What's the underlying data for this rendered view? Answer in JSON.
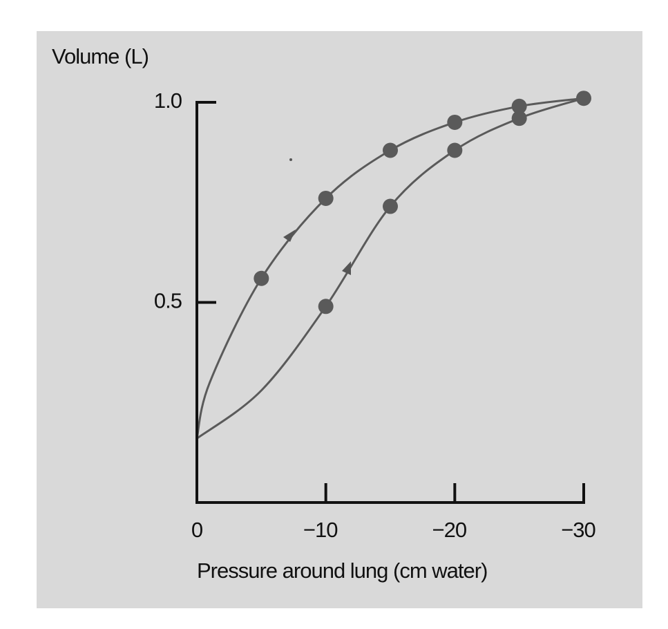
{
  "chart_data": {
    "type": "line",
    "y_label": "Volume (L)",
    "x_label": "Pressure around lung (cm water)",
    "xlim": [
      0,
      -30
    ],
    "ylim": [
      0,
      1
    ],
    "xticks": [
      0,
      {
        "value": -10,
        "label": "−10"
      },
      {
        "value": -20,
        "label": "−20"
      },
      {
        "value": -30,
        "label": "−30"
      }
    ],
    "yticks": [
      {
        "value": 0.5,
        "label": "0.5"
      },
      {
        "value": 1,
        "label": "1.0"
      }
    ],
    "color": "#5a5a5a",
    "series": [
      {
        "style": "line",
        "x": [
          0,
          -1,
          -5,
          -10,
          -15,
          -20,
          -25,
          -30
        ],
        "values": [
          0.16,
          0.3,
          0.56,
          0.76,
          0.88,
          0.95,
          0.99,
          1.01
        ]
      },
      {
        "style": "line",
        "x": [
          0,
          -5,
          -10,
          -15,
          -20,
          -25,
          -30
        ],
        "values": [
          0.16,
          0.28,
          0.49,
          0.74,
          0.88,
          0.96,
          1.01
        ]
      },
      {
        "style": "marker",
        "x": [
          -5,
          -10,
          -15,
          -20,
          -25,
          -30
        ],
        "values": [
          0.56,
          0.76,
          0.88,
          0.95,
          0.99,
          1.01
        ]
      },
      {
        "style": "marker",
        "x": [
          -10,
          -15,
          -20,
          -25
        ],
        "values": [
          0.49,
          0.74,
          0.88,
          0.96
        ]
      }
    ]
  }
}
